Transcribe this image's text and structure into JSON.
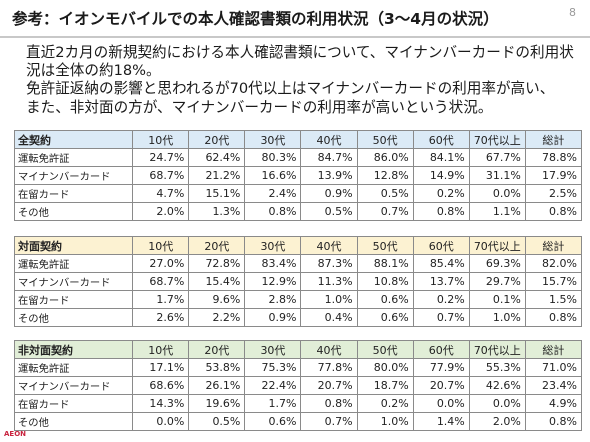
{
  "slide": {
    "title": "参考：イオンモバイルでの本人確認書類の利用状況（3～4月の状況）",
    "page_number": "8",
    "logo_text": "AEON"
  },
  "body": {
    "lines": [
      "直近2カ月の新規契約における本人確認書類について、マイナンバーカードの利用状",
      "況は全体の約18%。",
      "免許証返納の影響と思われるが70代以上はマイナンバーカードの利用率が高い、",
      "また、非対面の方が、マイナンバーカードの利用率が高いという状況。"
    ]
  },
  "colors": {
    "all_header": "#dbeaf6",
    "face_to_face_header": "#fcf2d2",
    "non_face_to_face_header": "#e1eed7",
    "brand": "#c9243f"
  },
  "tables": [
    {
      "label": "全契約",
      "columns": [
        "10代",
        "20代",
        "30代",
        "40代",
        "50代",
        "60代",
        "70代以上",
        "総計"
      ],
      "rows": [
        {
          "label": "運転免許証",
          "values": [
            "24.7%",
            "62.4%",
            "80.3%",
            "84.7%",
            "86.0%",
            "84.1%",
            "67.7%",
            "78.8%"
          ]
        },
        {
          "label": "マイナンバーカード",
          "values": [
            "68.7%",
            "21.2%",
            "16.6%",
            "13.9%",
            "12.8%",
            "14.9%",
            "31.1%",
            "17.9%"
          ]
        },
        {
          "label": "在留カード",
          "values": [
            "4.7%",
            "15.1%",
            "2.4%",
            "0.9%",
            "0.5%",
            "0.2%",
            "0.0%",
            "2.5%"
          ]
        },
        {
          "label": "その他",
          "values": [
            "2.0%",
            "1.3%",
            "0.8%",
            "0.5%",
            "0.7%",
            "0.8%",
            "1.1%",
            "0.8%"
          ]
        }
      ]
    },
    {
      "label": "対面契約",
      "columns": [
        "10代",
        "20代",
        "30代",
        "40代",
        "50代",
        "60代",
        "70代以上",
        "総計"
      ],
      "rows": [
        {
          "label": "運転免許証",
          "values": [
            "27.0%",
            "72.8%",
            "83.4%",
            "87.3%",
            "88.1%",
            "85.4%",
            "69.3%",
            "82.0%"
          ]
        },
        {
          "label": "マイナンバーカード",
          "values": [
            "68.7%",
            "15.4%",
            "12.9%",
            "11.3%",
            "10.8%",
            "13.7%",
            "29.7%",
            "15.7%"
          ]
        },
        {
          "label": "在留カード",
          "values": [
            "1.7%",
            "9.6%",
            "2.8%",
            "1.0%",
            "0.6%",
            "0.2%",
            "0.1%",
            "1.5%"
          ]
        },
        {
          "label": "その他",
          "values": [
            "2.6%",
            "2.2%",
            "0.9%",
            "0.4%",
            "0.6%",
            "0.7%",
            "1.0%",
            "0.8%"
          ]
        }
      ]
    },
    {
      "label": "非対面契約",
      "columns": [
        "10代",
        "20代",
        "30代",
        "40代",
        "50代",
        "60代",
        "70代以上",
        "総計"
      ],
      "rows": [
        {
          "label": "運転免許証",
          "values": [
            "17.1%",
            "53.8%",
            "75.3%",
            "77.8%",
            "80.0%",
            "77.9%",
            "55.3%",
            "71.0%"
          ]
        },
        {
          "label": "マイナンバーカード",
          "values": [
            "68.6%",
            "26.1%",
            "22.4%",
            "20.7%",
            "18.7%",
            "20.7%",
            "42.6%",
            "23.4%"
          ]
        },
        {
          "label": "在留カード",
          "values": [
            "14.3%",
            "19.6%",
            "1.7%",
            "0.8%",
            "0.2%",
            "0.0%",
            "0.0%",
            "4.9%"
          ]
        },
        {
          "label": "その他",
          "values": [
            "0.0%",
            "0.5%",
            "0.6%",
            "0.7%",
            "1.0%",
            "1.4%",
            "2.0%",
            "0.8%"
          ]
        }
      ]
    }
  ]
}
